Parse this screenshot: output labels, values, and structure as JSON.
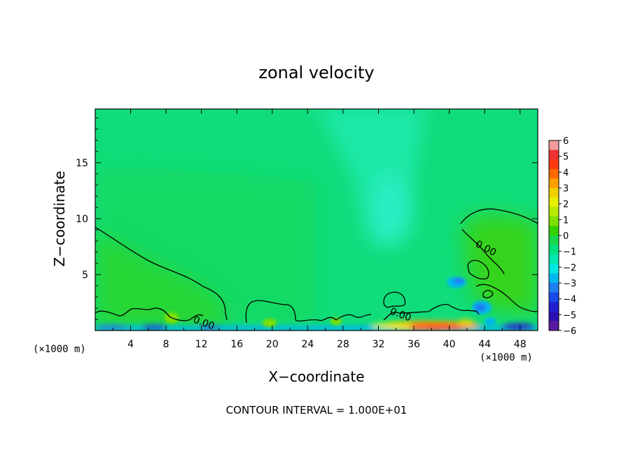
{
  "chart_data": {
    "type": "heatmap",
    "title": "zonal velocity",
    "xlabel": "X−coordinate",
    "ylabel": "Z−coordinate",
    "x_unit": "(×1000 m)",
    "z_unit": "(×1000 m)",
    "xlim": [
      0,
      50
    ],
    "ylim": [
      0,
      19.8
    ],
    "x_ticks": [
      4,
      8,
      12,
      16,
      20,
      24,
      28,
      32,
      36,
      40,
      44,
      48
    ],
    "y_ticks": [
      5,
      10,
      15
    ],
    "x_tick_labels": [
      "4",
      "8",
      "12",
      "16",
      "20",
      "24",
      "28",
      "32",
      "36",
      "40",
      "44",
      "48"
    ],
    "y_tick_labels": [
      "5",
      "10",
      "15"
    ],
    "colorbar": {
      "range": [
        -6,
        6
      ],
      "labels": [
        "6",
        "5",
        "4",
        "3",
        "2",
        "1",
        "0",
        "−1",
        "−2",
        "−3",
        "−4",
        "−5",
        "−6"
      ],
      "colors": [
        "#f29b9b",
        "#ee3030",
        "#ff3a10",
        "#ff6a00",
        "#ffa000",
        "#f0d000",
        "#e8f000",
        "#b6ea00",
        "#7ee000",
        "#34d000",
        "#18d84e",
        "#00e080",
        "#00e6b0",
        "#00e6e0",
        "#00b8f0",
        "#1e7ef0",
        "#1848e8",
        "#2020d0",
        "#2a10b0",
        "#5a1aa0"
      ]
    },
    "contour_label": "0.00",
    "contour_interval_text": "CONTOUR INTERVAL = 1.000E+01",
    "regions": [
      {
        "name": "background upper",
        "x": [
          0,
          50
        ],
        "z": [
          10,
          19.8
        ],
        "value": -1
      },
      {
        "name": "central negative column",
        "x": [
          30,
          38
        ],
        "z": [
          7,
          19.8
        ],
        "value": -2
      },
      {
        "name": "western positive lobe",
        "x": [
          0,
          16
        ],
        "z": [
          1,
          9
        ],
        "value": 0.5
      },
      {
        "name": "eastern positive lobe",
        "x": [
          41,
          50
        ],
        "z": [
          2,
          11
        ],
        "value": 0.8
      },
      {
        "name": "near-surface strong westward",
        "x": [
          0,
          30
        ],
        "z": [
          0,
          0.4
        ],
        "value": -4
      },
      {
        "name": "near-surface strong eastward",
        "x": [
          34,
          44
        ],
        "z": [
          0,
          0.8
        ],
        "value": 4
      },
      {
        "name": "isolated negative cell 1",
        "x": [
          39,
          41
        ],
        "z": [
          3.5,
          5
        ],
        "value": -3
      },
      {
        "name": "isolated negative cell 2",
        "x": [
          42,
          44
        ],
        "z": [
          1.5,
          2.8
        ],
        "value": -3.5
      }
    ]
  }
}
